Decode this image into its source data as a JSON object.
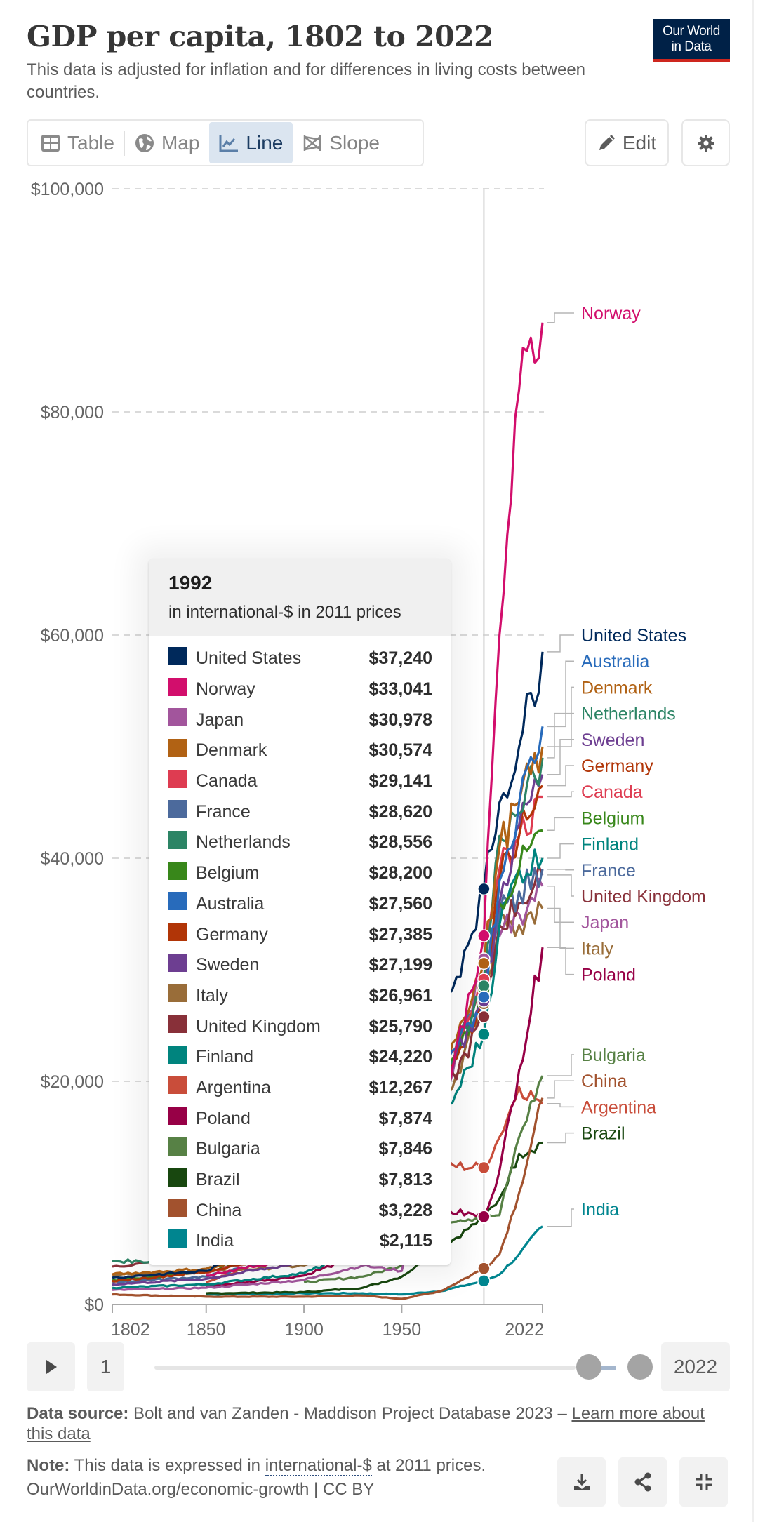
{
  "header": {
    "title": "GDP per capita, 1802 to 2022",
    "subtitle": "This data is adjusted for inflation and for differences in living costs between countries.",
    "logo_line1": "Our World",
    "logo_line2": "in Data"
  },
  "tabs": [
    {
      "label": "Table",
      "icon": "table-icon",
      "active": false
    },
    {
      "label": "Map",
      "icon": "globe-icon",
      "active": false
    },
    {
      "label": "Line",
      "icon": "line-chart-icon",
      "active": true
    },
    {
      "label": "Slope",
      "icon": "slope-icon",
      "active": false
    }
  ],
  "actions": {
    "edit_label": "Edit",
    "edit_icon": "pencil-icon",
    "settings_icon": "gear-icon"
  },
  "tooltip": {
    "year": "1992",
    "unit": "in international-$ in 2011 prices",
    "rows": [
      {
        "name": "United States",
        "value": "$37,240",
        "color": "#00295b"
      },
      {
        "name": "Norway",
        "value": "$33,041",
        "color": "#d20e6c"
      },
      {
        "name": "Japan",
        "value": "$30,978",
        "color": "#a2559c"
      },
      {
        "name": "Denmark",
        "value": "$30,574",
        "color": "#b16214"
      },
      {
        "name": "Canada",
        "value": "$29,141",
        "color": "#de3c51"
      },
      {
        "name": "France",
        "value": "$28,620",
        "color": "#4c6a9c"
      },
      {
        "name": "Netherlands",
        "value": "$28,556",
        "color": "#2c8465"
      },
      {
        "name": "Belgium",
        "value": "$28,200",
        "color": "#38871a"
      },
      {
        "name": "Australia",
        "value": "$27,560",
        "color": "#286bbb"
      },
      {
        "name": "Germany",
        "value": "$27,385",
        "color": "#b13507"
      },
      {
        "name": "Sweden",
        "value": "$27,199",
        "color": "#6d3e91"
      },
      {
        "name": "Italy",
        "value": "$26,961",
        "color": "#996d39"
      },
      {
        "name": "United Kingdom",
        "value": "$25,790",
        "color": "#883039"
      },
      {
        "name": "Finland",
        "value": "$24,220",
        "color": "#00847e"
      },
      {
        "name": "Argentina",
        "value": "$12,267",
        "color": "#c94d3a"
      },
      {
        "name": "Poland",
        "value": "$7,874",
        "color": "#970046"
      },
      {
        "name": "Bulgaria",
        "value": "$7,846",
        "color": "#578145"
      },
      {
        "name": "Brazil",
        "value": "$7,813",
        "color": "#18470f"
      },
      {
        "name": "China",
        "value": "$3,228",
        "color": "#a2522e"
      },
      {
        "name": "India",
        "value": "$2,115",
        "color": "#00858f"
      }
    ]
  },
  "timeline": {
    "play_icon": "play-icon",
    "start_label": "1",
    "end_label": "2022",
    "range_start": 1802,
    "range_end": 2022,
    "min": 1,
    "max": 2022
  },
  "footer": {
    "source_label": "Data source:",
    "source_text": " Bolt and van Zanden - Maddison Project Database 2023 – ",
    "source_link": "Learn more about this data",
    "note_label": "Note:",
    "note_pre": " This data is expressed in ",
    "note_link": "international-$",
    "note_post": " at 2011 prices.",
    "url": "OurWorldinData.org/economic-growth | CC BY",
    "buttons": [
      {
        "name": "download-button",
        "icon": "download-icon"
      },
      {
        "name": "share-button",
        "icon": "share-icon"
      },
      {
        "name": "exit-fullscreen-button",
        "icon": "exit-fullscreen-icon"
      }
    ]
  },
  "chart_data": {
    "type": "line",
    "title": "GDP per capita, 1802 to 2022",
    "ylabel": "in international-$ in 2011 prices",
    "xlabel": "",
    "xlim": [
      1802,
      2022
    ],
    "ylim": [
      0,
      100000
    ],
    "x_ticks": [
      "1802",
      "1850",
      "1900",
      "1950",
      "2022"
    ],
    "x_tick_values": [
      1802,
      1850,
      1900,
      1950,
      2022
    ],
    "y_ticks": [
      "$0",
      "$20,000",
      "$40,000",
      "$60,000",
      "$80,000",
      "$100,000"
    ],
    "y_tick_values": [
      0,
      20000,
      40000,
      60000,
      80000,
      100000
    ],
    "grid": "horizontal-dashed",
    "legend": "right",
    "hover_year": 1992,
    "x": [
      1802,
      1850,
      1900,
      1930,
      1950,
      1970,
      1992,
      2000,
      2010,
      2022
    ],
    "series": [
      {
        "name": "Norway",
        "color": "#d20e6c",
        "label_color": "#d20e6c",
        "values": [
          null,
          2600,
          4300,
          6500,
          9500,
          17000,
          33041,
          60000,
          82000,
          88000
        ]
      },
      {
        "name": "United States",
        "color": "#00295b",
        "label_color": "#00295b",
        "values": [
          2400,
          3000,
          7000,
          10000,
          16000,
          25000,
          37240,
          45000,
          50000,
          58500
        ]
      },
      {
        "name": "Australia",
        "color": "#286bbb",
        "label_color": "#286bbb",
        "values": [
          null,
          4800,
          7500,
          8500,
          13000,
          20000,
          27560,
          38000,
          45000,
          51800
        ]
      },
      {
        "name": "Denmark",
        "color": "#b16214",
        "label_color": "#b16214",
        "values": [
          2700,
          3200,
          5000,
          8000,
          12500,
          21000,
          30574,
          41000,
          45000,
          50000
        ]
      },
      {
        "name": "Netherlands",
        "color": "#2c8465",
        "label_color": "#2c8465",
        "values": [
          3900,
          3800,
          5500,
          8000,
          10500,
          20000,
          28556,
          42000,
          44000,
          49000
        ]
      },
      {
        "name": "Sweden",
        "color": "#6d3e91",
        "label_color": "#6d3e91",
        "values": [
          1800,
          2300,
          3800,
          6500,
          11000,
          20000,
          27199,
          36000,
          43000,
          47500
        ]
      },
      {
        "name": "Germany",
        "color": "#b13507",
        "label_color": "#b13507",
        "values": [
          2100,
          2900,
          5000,
          6500,
          8000,
          19000,
          27385,
          38000,
          42000,
          46500
        ]
      },
      {
        "name": "Canada",
        "color": "#de3c51",
        "label_color": "#de3c51",
        "values": [
          null,
          2800,
          5000,
          7000,
          13000,
          21000,
          29141,
          39000,
          42000,
          45500
        ]
      },
      {
        "name": "Belgium",
        "color": "#38871a",
        "label_color": "#38871a",
        "values": [
          2200,
          2900,
          5000,
          7000,
          9500,
          19000,
          28200,
          36000,
          39000,
          42500
        ]
      },
      {
        "name": "Finland",
        "color": "#00847e",
        "label_color": "#00847e",
        "values": [
          1500,
          1800,
          2800,
          5000,
          8000,
          16000,
          24220,
          34000,
          39000,
          40000
        ]
      },
      {
        "name": "France",
        "color": "#4c6a9c",
        "label_color": "#4c6a9c",
        "values": [
          2000,
          2500,
          4500,
          6500,
          8500,
          19000,
          28620,
          35000,
          37000,
          39000
        ]
      },
      {
        "name": "United Kingdom",
        "color": "#883039",
        "label_color": "#883039",
        "values": [
          3400,
          4200,
          6500,
          7500,
          11000,
          18000,
          25790,
          34000,
          36000,
          38500
        ]
      },
      {
        "name": "Japan",
        "color": "#a2559c",
        "label_color": "#a2559c",
        "values": [
          1300,
          1500,
          2200,
          3500,
          3000,
          17000,
          30978,
          33000,
          35000,
          37500
        ]
      },
      {
        "name": "Italy",
        "color": "#996d39",
        "label_color": "#996d39",
        "values": [
          2700,
          2900,
          3500,
          5000,
          6000,
          17000,
          26961,
          35000,
          34000,
          35500
        ]
      },
      {
        "name": "Poland",
        "color": "#970046",
        "label_color": "#970046",
        "values": [
          null,
          1600,
          2600,
          4500,
          5000,
          8500,
          7874,
          12000,
          21000,
          32000
        ]
      },
      {
        "name": "Bulgaria",
        "color": "#578145",
        "label_color": "#578145",
        "values": [
          null,
          null,
          2000,
          2500,
          3500,
          7500,
          7846,
          8000,
          15000,
          20500
        ]
      },
      {
        "name": "China",
        "color": "#a2522e",
        "label_color": "#a2522e",
        "values": [
          900,
          700,
          700,
          800,
          500,
          1200,
          3228,
          4500,
          10000,
          18500
        ]
      },
      {
        "name": "Argentina",
        "color": "#c94d3a",
        "label_color": "#c94d3a",
        "values": [
          null,
          2000,
          5000,
          8000,
          9000,
          12500,
          12267,
          15000,
          19500,
          18000
        ]
      },
      {
        "name": "Brazil",
        "color": "#18470f",
        "label_color": "#18470f",
        "values": [
          null,
          1000,
          1100,
          1500,
          2500,
          5000,
          7813,
          9500,
          13500,
          14500
        ]
      },
      {
        "name": "India",
        "color": "#00858f",
        "label_color": "#00858f",
        "values": [
          null,
          900,
          1000,
          1000,
          900,
          1200,
          2115,
          2700,
          4500,
          7000
        ]
      }
    ],
    "end_label_order": [
      "Norway",
      "United States",
      "Australia",
      "Denmark",
      "Netherlands",
      "Sweden",
      "Germany",
      "Canada",
      "Belgium",
      "Finland",
      "France",
      "United Kingdom",
      "Japan",
      "Italy",
      "Poland",
      "Bulgaria",
      "China",
      "Argentina",
      "Brazil",
      "India"
    ]
  }
}
